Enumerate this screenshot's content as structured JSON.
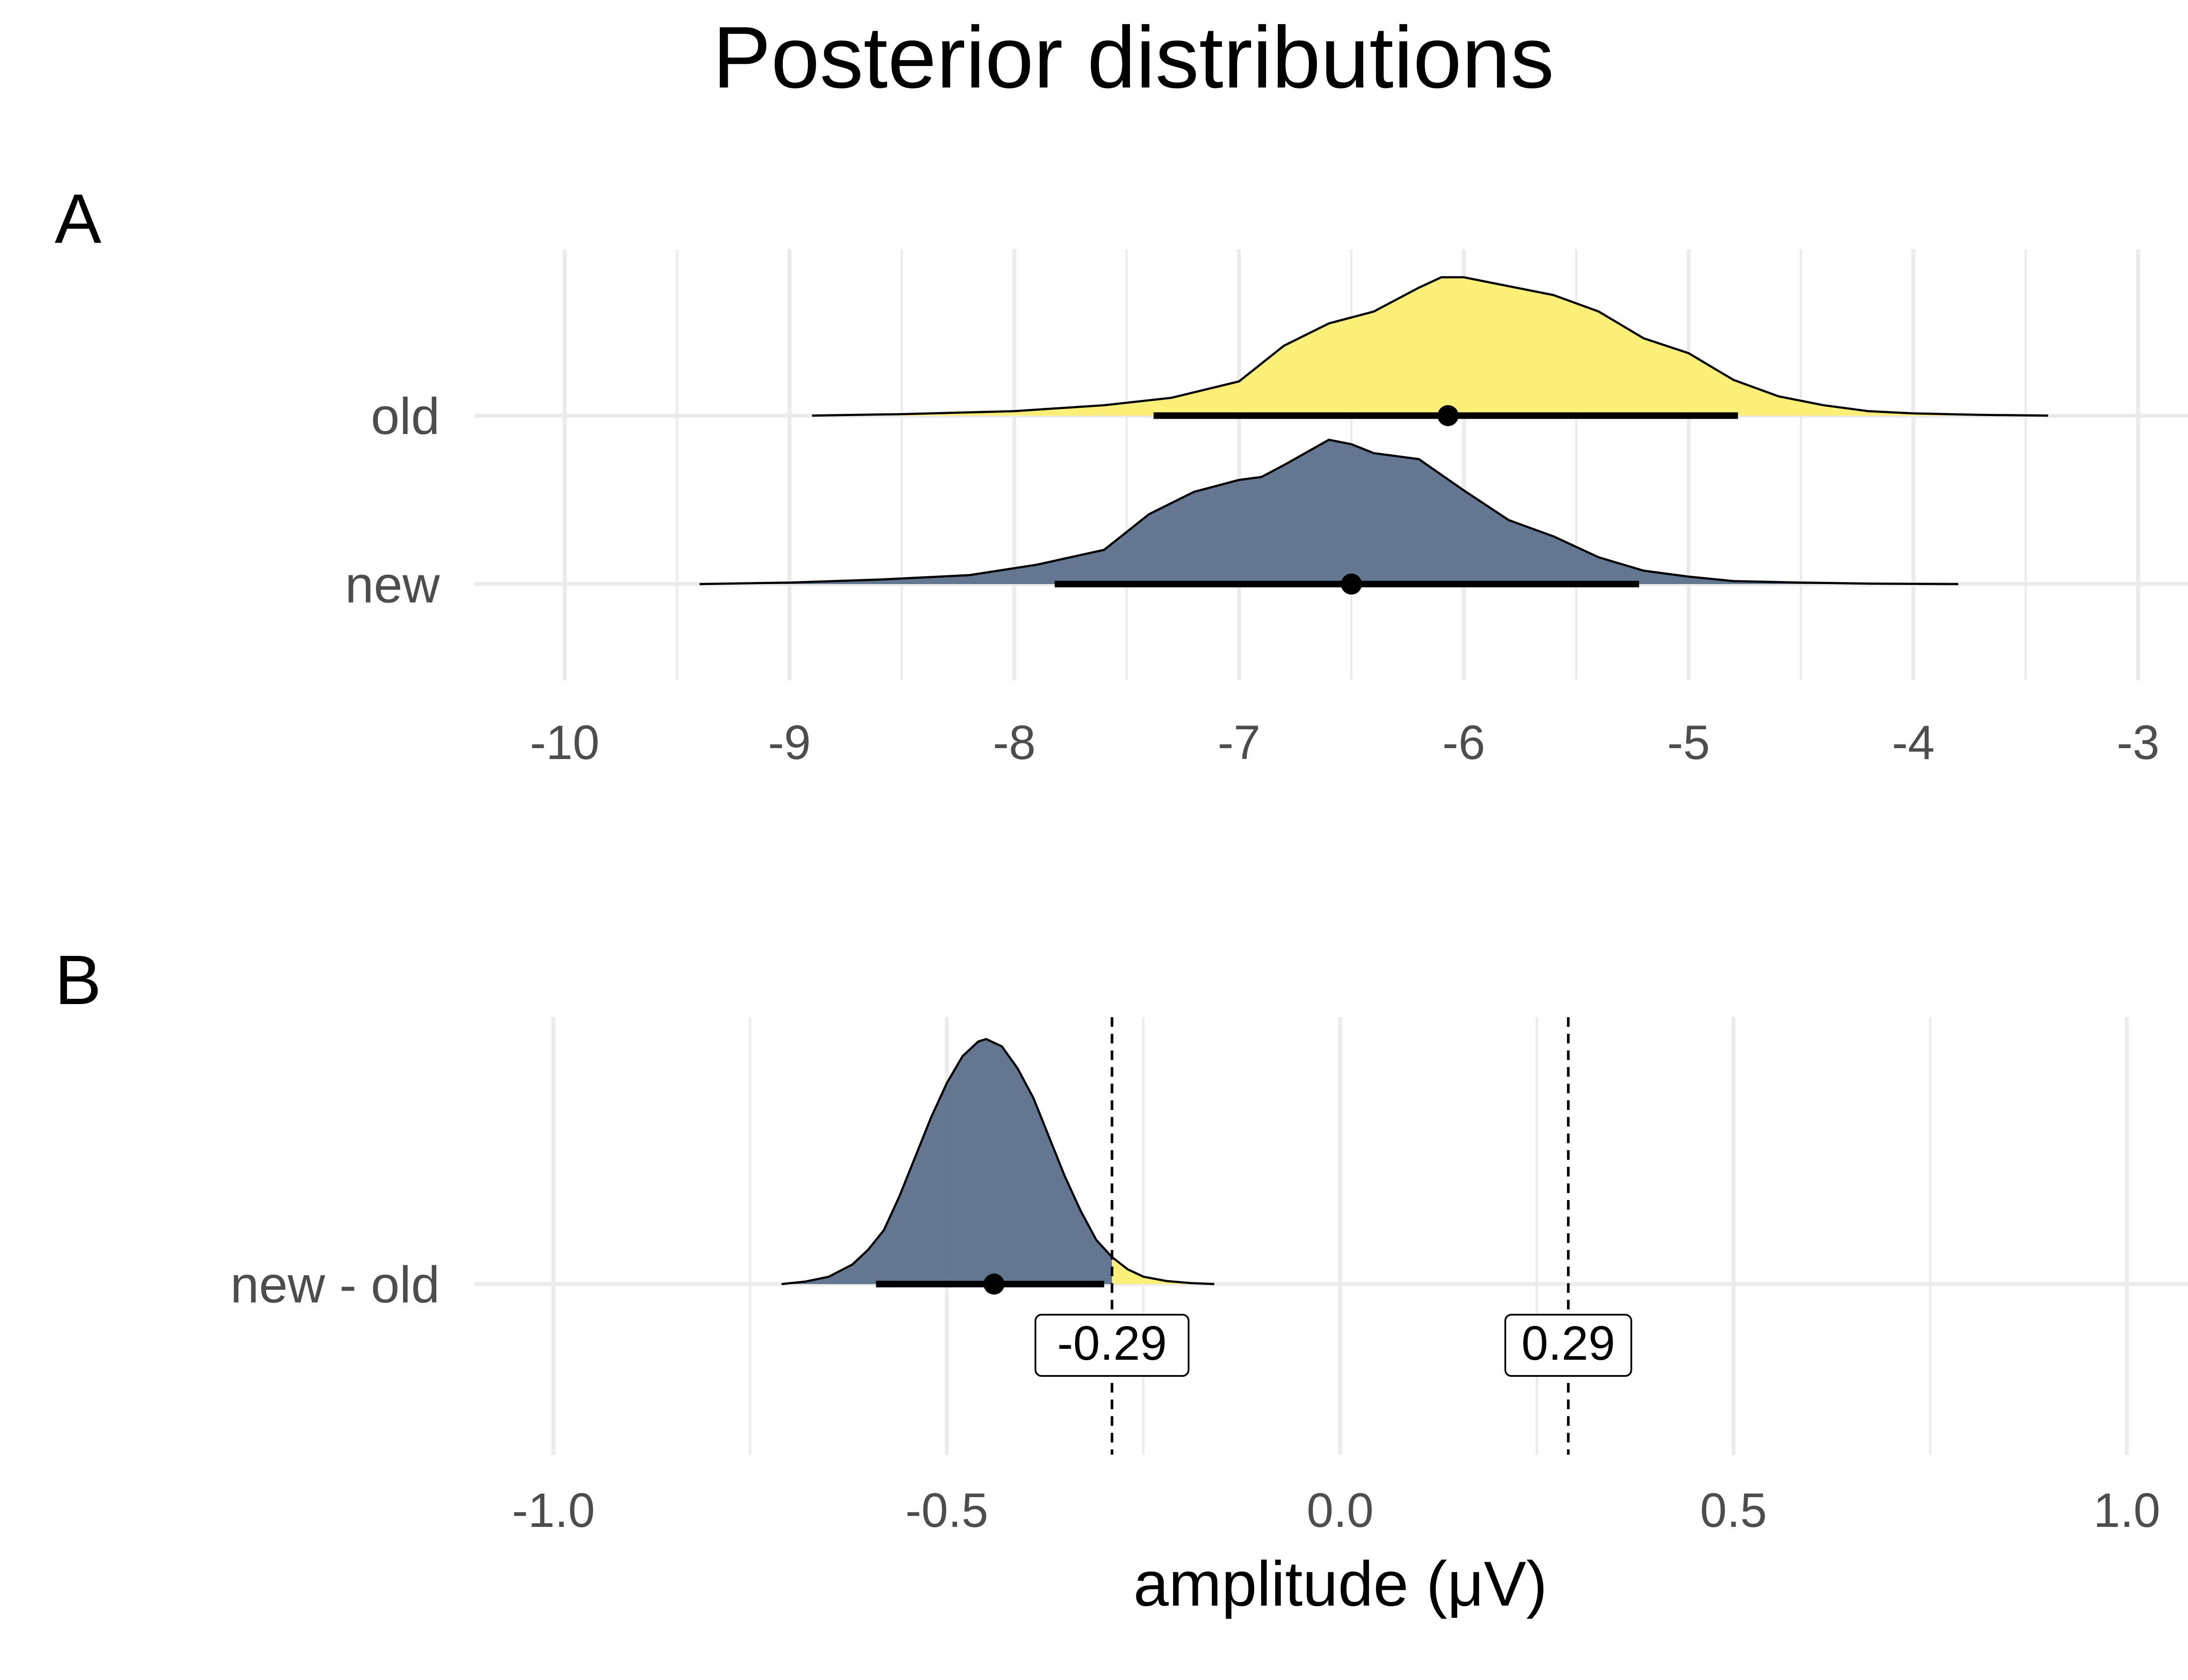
{
  "title": "Posterior distributions",
  "colors": {
    "old": "#fdee70",
    "new": "#5b6f8c",
    "grid": "#ebebeb",
    "tick_text": "#4d4d4d"
  },
  "chart_data": [
    {
      "panel": "A",
      "type": "area",
      "chart_kind": "density ridgeline with point-interval",
      "xlim": [
        -10.4,
        -2.7
      ],
      "x_ticks": [
        "-10",
        "-9",
        "-8",
        "-7",
        "-6",
        "-5",
        "-4",
        "-3"
      ],
      "x_tick_values": [
        -10,
        -9,
        -8,
        -7,
        -6,
        -5,
        -4,
        -3
      ],
      "grid": true,
      "xlabel": "",
      "ylabel": "",
      "categories": [
        "old",
        "new"
      ],
      "series": [
        {
          "name": "old",
          "color": "#fdee70",
          "density": {
            "x": [
              -8.9,
              -8.5,
              -8.0,
              -7.6,
              -7.3,
              -7.0,
              -6.8,
              -6.6,
              -6.4,
              -6.2,
              -6.1,
              -6.0,
              -5.9,
              -5.8,
              -5.6,
              -5.4,
              -5.2,
              -5.0,
              -4.8,
              -4.6,
              -4.4,
              -4.2,
              -4.0,
              -3.7,
              -3.4
            ],
            "y": [
              0.0,
              0.01,
              0.03,
              0.07,
              0.12,
              0.23,
              0.47,
              0.62,
              0.7,
              0.86,
              0.93,
              0.93,
              0.9,
              0.87,
              0.81,
              0.7,
              0.52,
              0.42,
              0.24,
              0.13,
              0.07,
              0.03,
              0.015,
              0.005,
              0.0
            ]
          },
          "point": -6.07,
          "interval": [
            -7.38,
            -4.78
          ]
        },
        {
          "name": "new",
          "color": "#5b6f8c",
          "density": {
            "x": [
              -9.4,
              -9.0,
              -8.6,
              -8.2,
              -7.9,
              -7.6,
              -7.4,
              -7.2,
              -7.0,
              -6.9,
              -6.8,
              -6.6,
              -6.5,
              -6.4,
              -6.2,
              -6.0,
              -5.8,
              -5.6,
              -5.4,
              -5.2,
              -5.0,
              -4.8,
              -4.5,
              -4.2,
              -3.8
            ],
            "y": [
              0.0,
              0.01,
              0.03,
              0.06,
              0.13,
              0.23,
              0.47,
              0.62,
              0.7,
              0.72,
              0.8,
              0.97,
              0.94,
              0.88,
              0.84,
              0.63,
              0.43,
              0.32,
              0.18,
              0.09,
              0.05,
              0.02,
              0.01,
              0.003,
              0.0
            ]
          },
          "point": -6.5,
          "interval": [
            -7.82,
            -5.22
          ]
        }
      ]
    },
    {
      "panel": "B",
      "type": "area",
      "chart_kind": "density ridgeline with point-interval",
      "xlim": [
        -1.1,
        1.1
      ],
      "x_ticks": [
        "-1.0",
        "-0.5",
        "0.0",
        "0.5",
        "1.0"
      ],
      "x_tick_values": [
        -1.0,
        -0.5,
        0.0,
        0.5,
        1.0
      ],
      "grid": true,
      "xlabel": "amplitude (μV)",
      "ylabel": "",
      "categories": [
        "new - old"
      ],
      "reference_lines": [
        {
          "x": -0.29,
          "label": "-0.29",
          "style": "dashed"
        },
        {
          "x": 0.29,
          "label": "0.29",
          "style": "dashed"
        }
      ],
      "series": [
        {
          "name": "new - old",
          "color_below_rope": "#5b6f8c",
          "color_above_rope": "#fdee70",
          "rope_boundary": -0.29,
          "density": {
            "x": [
              -0.71,
              -0.68,
              -0.65,
              -0.62,
              -0.6,
              -0.58,
              -0.56,
              -0.54,
              -0.52,
              -0.5,
              -0.48,
              -0.46,
              -0.45,
              -0.43,
              -0.41,
              -0.39,
              -0.37,
              -0.35,
              -0.33,
              -0.31,
              -0.29,
              -0.27,
              -0.25,
              -0.22,
              -0.19,
              -0.16
            ],
            "y": [
              0.0,
              0.01,
              0.03,
              0.08,
              0.14,
              0.22,
              0.36,
              0.52,
              0.68,
              0.82,
              0.93,
              0.99,
              1.0,
              0.97,
              0.88,
              0.76,
              0.6,
              0.44,
              0.3,
              0.18,
              0.11,
              0.06,
              0.03,
              0.012,
              0.004,
              0.0
            ]
          },
          "point": -0.44,
          "interval": [
            -0.59,
            -0.3
          ]
        }
      ]
    }
  ]
}
